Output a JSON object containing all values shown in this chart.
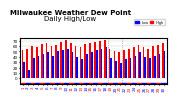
{
  "title": "Milwaukee Weather Dew Point",
  "subtitle": "Daily High/Low",
  "ylabel": "",
  "background_color": "#ffffff",
  "legend_high_color": "#ff0000",
  "legend_low_color": "#0000ff",
  "legend_high_label": "High",
  "legend_low_label": "Low",
  "bar_width": 0.35,
  "ylim": [
    -10,
    75
  ],
  "yticks": [
    0,
    10,
    20,
    30,
    40,
    50,
    60,
    70
  ],
  "high_values": [
    52,
    55,
    60,
    58,
    63,
    65,
    60,
    62,
    68,
    72,
    65,
    60,
    58,
    63,
    65,
    68,
    70,
    72,
    55,
    50,
    48,
    52,
    55,
    58,
    62,
    58,
    55,
    60,
    62,
    65
  ],
  "low_values": [
    30,
    15,
    38,
    42,
    45,
    48,
    42,
    50,
    52,
    55,
    48,
    40,
    35,
    45,
    48,
    52,
    55,
    58,
    38,
    32,
    28,
    35,
    38,
    42,
    48,
    40,
    38,
    42,
    45,
    50
  ],
  "x_labels": [
    "1",
    "2",
    "3",
    "4",
    "5",
    "6",
    "7",
    "8",
    "9",
    "10",
    "11",
    "12",
    "13",
    "14",
    "15",
    "16",
    "17",
    "18",
    "19",
    "20",
    "21",
    "22",
    "23",
    "24",
    "25",
    "26",
    "27",
    "28",
    "29",
    "30"
  ],
  "high_color": "#ff0000",
  "low_color": "#0000ff",
  "dotted_lines": [
    18,
    21
  ],
  "title_fontsize": 5,
  "axis_fontsize": 3.5,
  "tick_fontsize": 3
}
